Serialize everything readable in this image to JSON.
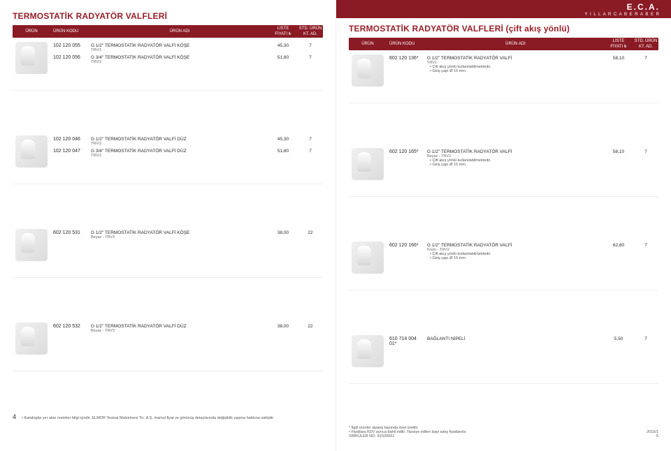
{
  "brand": {
    "logo": "E.C.A.",
    "tagline": "Y I L L A R C A   B E R A B E R"
  },
  "left": {
    "title": "TERMOSTATİK RADYATÖR VALFLERİ",
    "headers": {
      "urun": "ÜRÜN",
      "kodu": "ÜRÜN KODU",
      "adi": "ÜRÜN ADI",
      "fiyat1": "LİSTE",
      "fiyat2": "FİYATI ₺",
      "std1": "STD. ÜRÜN",
      "std2": "KT. AD."
    },
    "blocks": [
      {
        "rows": [
          {
            "code": "102 120 055",
            "name": "G 1/2\" TERMOSTATİK RADYATÖR VALFİ KÖŞE",
            "sub": "TRV/1",
            "price": "45,30",
            "qty": "7"
          },
          {
            "code": "102 120 056",
            "name": "G 3/4\" TERMOSTATİK RADYATÖR VALFİ KÖŞE",
            "sub": "TRV/1",
            "price": "51,80",
            "qty": "7"
          }
        ]
      },
      {
        "rows": [
          {
            "code": "102 120 046",
            "name": "G 1/2\" TERMOSTATİK RADYATÖR VALFİ DÜZ",
            "sub": "TRV/1",
            "price": "45,30",
            "qty": "7"
          },
          {
            "code": "102 120 047",
            "name": "G 3/4\" TERMOSTATİK RADYATÖR VALFİ DÜZ",
            "sub": "TRV/1",
            "price": "51,80",
            "qty": "7"
          }
        ]
      },
      {
        "rows": [
          {
            "code": "602 120 531",
            "name": "G 1/2\" TERMOSTATİK RADYATÖR VALFİ KÖŞE",
            "sub": "Beyaz - TRV3",
            "price": "38,00",
            "qty": "22"
          }
        ]
      },
      {
        "rows": [
          {
            "code": "602 120 532",
            "name": "G 1/2\" TERMOSTATİK RADYATÖR VALFİ DÜZ",
            "sub": "Beyaz - TRV3",
            "price": "38,00",
            "qty": "22"
          }
        ]
      }
    ],
    "footer": {
      "page": "4",
      "note": "• Katalogda yer alan resimler bilgi içindir. ELMOR Tesisat Malzemesi Tic. A.Ş. mamul fiyat ve görünüş detaylarında değişiklik yapma hakkına sahiptir."
    }
  },
  "right": {
    "title": "TERMOSTATİK RADYATÖR VALFLERİ (çift akış yönlü)",
    "headers": {
      "urun": "ÜRÜN",
      "kodu": "ÜRÜN KODU",
      "adi": "ÜRÜN ADI",
      "fiyat1": "LİSTE",
      "fiyat2": "FİYATI ₺",
      "std1": "STD. ÜRÜN",
      "std2": "KT. AD."
    },
    "blocks": [
      {
        "rows": [
          {
            "code": "602 120 136*",
            "name": "G 1/2\" TERMOSTATİK RADYATÖR VALFİ",
            "sub": "TRV1",
            "price": "58,10",
            "qty": "7",
            "bullets": [
              "Çift akış yönlü kullanılabilmektedir.",
              "Giriş çapı Ø 15 mm."
            ]
          }
        ]
      },
      {
        "rows": [
          {
            "code": "602 120 165*",
            "name": "G 1/2\" TERMOSTATİK RADYATÖR VALFİ",
            "sub": "Beyaz - TRV2",
            "price": "58,10",
            "qty": "7",
            "bullets": [
              "Çift akış yönlü kullanılabilmektedir.",
              "Giriş çapı Ø 15 mm."
            ]
          }
        ]
      },
      {
        "rows": [
          {
            "code": "602 120 166*",
            "name": "G 1/2\" TERMOSTATİK RADYATÖR VALFİ",
            "sub": "Krom - TRV2",
            "price": "62,80",
            "qty": "7",
            "bullets": [
              "Çift akış yönlü kullanılabilmektedir.",
              "Giriş çapı Ø 15 mm."
            ]
          }
        ]
      },
      {
        "rows": [
          {
            "code": "610 714 004 01*",
            "name": "BAĞLANTI NİPELİ",
            "sub": "",
            "price": "5,50",
            "qty": "7"
          }
        ]
      }
    ],
    "footer": {
      "note1": "* İlgili ürünler sipariş bazında özel üretilir.",
      "note2": "• Fiyatlara KDV ayrıca dahil edilir. Tavsiye edilen bayi satış fiyatlarıdır.",
      "note3": "SİRKÜLER NO: S1520001",
      "year": "2015/1",
      "page": "5"
    }
  }
}
